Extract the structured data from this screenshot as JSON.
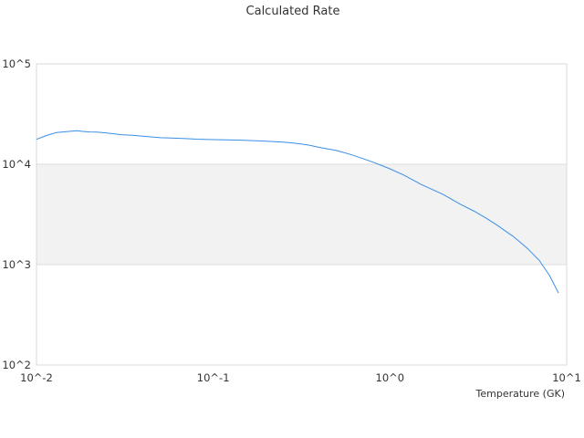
{
  "chart_data": {
    "type": "line",
    "title": "Calculated Rate",
    "xlabel": "Temperature (GK)",
    "ylabel": "",
    "x_scale": "log",
    "y_scale": "log",
    "xlim": [
      0.01,
      10
    ],
    "ylim": [
      100,
      100000
    ],
    "x_ticks": [
      "10^-2",
      "10^-1",
      "10^0",
      "10^1"
    ],
    "y_ticks": [
      "10^5",
      "10^4",
      "10^3",
      "10^2"
    ],
    "grid": true,
    "legend": "none",
    "shaded_band": {
      "from": 1000,
      "to": 10000,
      "color": "#f2f2f2"
    },
    "series": [
      {
        "color": "#3a8ee6",
        "x": [
          0.01,
          0.011,
          0.012,
          0.013,
          0.015,
          0.017,
          0.018,
          0.02,
          0.022,
          0.025,
          0.03,
          0.035,
          0.04,
          0.05,
          0.06,
          0.07,
          0.08,
          0.1,
          0.12,
          0.15,
          0.2,
          0.25,
          0.3,
          0.35,
          0.4,
          0.5,
          0.6,
          0.7,
          0.8,
          0.9,
          1.0,
          1.2,
          1.5,
          2.0,
          2.5,
          3.0,
          3.5,
          4.0,
          5.0,
          6.0,
          7.0,
          8.0,
          9.0
        ],
        "values": [
          17700,
          18900,
          19900,
          20700,
          21200,
          21600,
          21300,
          21000,
          20900,
          20500,
          19700,
          19400,
          19000,
          18400,
          18200,
          18000,
          17800,
          17600,
          17500,
          17300,
          17000,
          16600,
          16100,
          15500,
          14700,
          13700,
          12500,
          11400,
          10500,
          9700,
          9000,
          7800,
          6300,
          5000,
          4000,
          3400,
          2900,
          2500,
          1900,
          1450,
          1100,
          780,
          520
        ]
      }
    ]
  }
}
